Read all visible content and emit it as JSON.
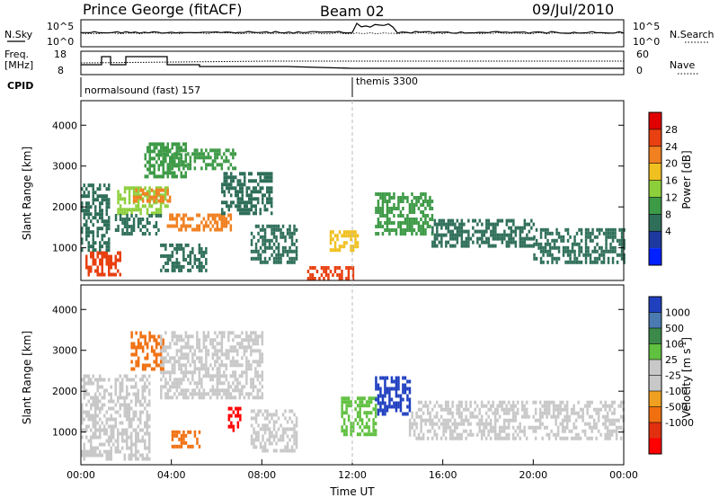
{
  "header": {
    "radar": "Prince George (fitACF)",
    "beam": "Beam 02",
    "date": "09/Jul/2010"
  },
  "top_panels": {
    "nsky_label": "N.Sky",
    "nsearch_label": "N.Search",
    "freq_label": "Freq.",
    "freq_unit": "[MHz]",
    "nave_label": "Nave",
    "cpid_label": "CPID",
    "nsky_ticks": [
      "10^5",
      "10^0"
    ],
    "nsearch_ticks": [
      "10^5",
      "10^0"
    ],
    "freq_ticks": [
      "18",
      "8"
    ],
    "nave_ticks": [
      "60",
      "0"
    ],
    "cpid_segments": [
      {
        "label": "normalsound (fast) 157",
        "start_hour": 0
      },
      {
        "label": "themis 3300",
        "start_hour": 12
      }
    ]
  },
  "colorbars": {
    "power": {
      "title": "Power [dB]",
      "ticks": [
        "28",
        "24",
        "20",
        "16",
        "12",
        "8",
        "4"
      ],
      "colors": [
        "#0020ff",
        "#1e3aa0",
        "#2f6f5a",
        "#3d9a46",
        "#8ccf3a",
        "#f0c020",
        "#f08020",
        "#e84010",
        "#e00000"
      ]
    },
    "velocity": {
      "title": "Velocity [m s",
      "title_sup": "-1",
      "title_end": "]",
      "ticks": [
        "1000",
        "500",
        "100",
        "25",
        "-25",
        "-100",
        "-500",
        "-1000"
      ],
      "colors": [
        "#2040c0",
        "#4a7ab0",
        "#3b8a4a",
        "#60c040",
        "#c8c8c8",
        "#c8c8c8",
        "#f0a020",
        "#f07010",
        "#e03010",
        "#ff0000"
      ]
    }
  },
  "chart_data": [
    {
      "type": "heatmap",
      "name": "power",
      "xlabel": "",
      "ylabel": "Slant Range [km]",
      "xlim": [
        0,
        24
      ],
      "ylim": [
        200,
        4600
      ],
      "yticks": [
        "1000",
        "2000",
        "3000",
        "4000"
      ],
      "regions": [
        {
          "t0": 0.2,
          "t1": 1.8,
          "r0": 300,
          "r1": 900,
          "level": 28
        },
        {
          "t0": 0.0,
          "t1": 1.2,
          "r0": 900,
          "r1": 2500,
          "level": 8
        },
        {
          "t0": 1.6,
          "t1": 3.8,
          "r0": 1800,
          "r1": 2500,
          "level": 16
        },
        {
          "t0": 2.2,
          "t1": 4.0,
          "r0": 2100,
          "r1": 2400,
          "level": 24
        },
        {
          "t0": 2.8,
          "t1": 4.6,
          "r0": 2700,
          "r1": 3500,
          "level": 12
        },
        {
          "t0": 3.5,
          "t1": 6.8,
          "r0": 2900,
          "r1": 3400,
          "level": 12
        },
        {
          "t0": 3.8,
          "t1": 6.6,
          "r0": 1400,
          "r1": 1800,
          "level": 24
        },
        {
          "t0": 1.5,
          "t1": 3.5,
          "r0": 1300,
          "r1": 1800,
          "level": 8
        },
        {
          "t0": 3.5,
          "t1": 5.5,
          "r0": 400,
          "r1": 1100,
          "level": 8
        },
        {
          "t0": 6.2,
          "t1": 8.4,
          "r0": 1800,
          "r1": 2800,
          "level": 8
        },
        {
          "t0": 7.5,
          "t1": 9.5,
          "r0": 600,
          "r1": 1500,
          "level": 8
        },
        {
          "t0": 10.0,
          "t1": 12.0,
          "r0": 200,
          "r1": 500,
          "level": 28
        },
        {
          "t0": 11.0,
          "t1": 12.2,
          "r0": 900,
          "r1": 1400,
          "level": 20
        },
        {
          "t0": 13.0,
          "t1": 15.5,
          "r0": 1300,
          "r1": 2300,
          "level": 12
        },
        {
          "t0": 15.5,
          "t1": 20.0,
          "r0": 1000,
          "r1": 1700,
          "level": 8
        },
        {
          "t0": 20.0,
          "t1": 24.0,
          "r0": 600,
          "r1": 1400,
          "level": 8
        }
      ]
    },
    {
      "type": "heatmap",
      "name": "velocity",
      "xlabel": "Time UT",
      "ylabel": "Slant Range [km]",
      "xlim": [
        0,
        24
      ],
      "ylim": [
        200,
        4600
      ],
      "xticks": [
        "00:00",
        "04:00",
        "08:00",
        "12:00",
        "16:00",
        "20:00",
        "00:00"
      ],
      "yticks": [
        "1000",
        "2000",
        "3000",
        "4000"
      ],
      "regions": [
        {
          "t0": 0.0,
          "t1": 3.0,
          "r0": 300,
          "r1": 2400,
          "level": 25
        },
        {
          "t0": 2.2,
          "t1": 3.6,
          "r0": 2500,
          "r1": 3400,
          "level": -500
        },
        {
          "t0": 3.5,
          "t1": 8.0,
          "r0": 1800,
          "r1": 3400,
          "level": 25
        },
        {
          "t0": 4.0,
          "t1": 5.2,
          "r0": 600,
          "r1": 1000,
          "level": -500
        },
        {
          "t0": 6.5,
          "t1": 7.0,
          "r0": 1000,
          "r1": 1600,
          "level": -1000
        },
        {
          "t0": 7.5,
          "t1": 9.5,
          "r0": 500,
          "r1": 1500,
          "level": 25
        },
        {
          "t0": 11.5,
          "t1": 13.0,
          "r0": 900,
          "r1": 1800,
          "level": 100
        },
        {
          "t0": 13.0,
          "t1": 14.5,
          "r0": 1400,
          "r1": 2300,
          "level": 1000
        },
        {
          "t0": 14.5,
          "t1": 24.0,
          "r0": 800,
          "r1": 1700,
          "level": 25
        }
      ]
    }
  ]
}
